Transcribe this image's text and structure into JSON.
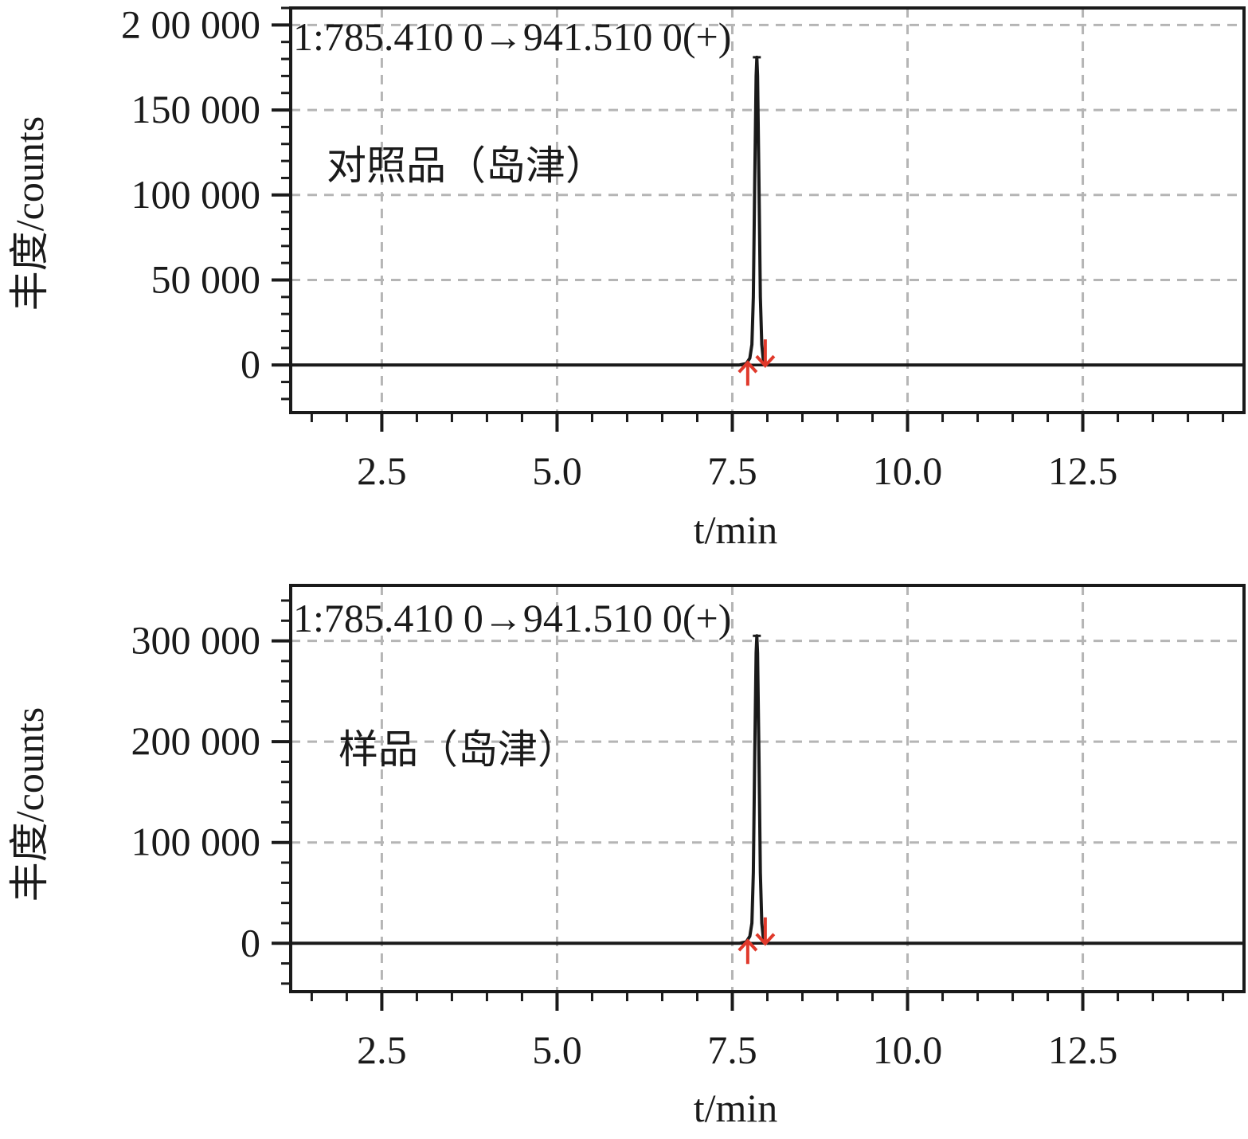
{
  "chart_data": [
    {
      "type": "line",
      "transition_label": "1:785.410 0→941.510 0(+)",
      "annotation": "对照品（岛津）",
      "xlabel": "t/min",
      "ylabel": "丰度/counts",
      "xlim": [
        1.2,
        14.8
      ],
      "ylim": [
        -28000,
        210000
      ],
      "x_ticks": [
        {
          "value": 2.5,
          "label": "2.5"
        },
        {
          "value": 5.0,
          "label": "5.0"
        },
        {
          "value": 7.5,
          "label": "7.5"
        },
        {
          "value": 10.0,
          "label": "10.0"
        },
        {
          "value": 12.5,
          "label": "12.5"
        }
      ],
      "y_ticks": [
        {
          "value": 0,
          "label": "0"
        },
        {
          "value": 50000,
          "label": "50 000"
        },
        {
          "value": 100000,
          "label": "100 000"
        },
        {
          "value": 150000,
          "label": "150 000"
        },
        {
          "value": 200000,
          "label": "2 00 000"
        }
      ],
      "grid": true,
      "peak": {
        "retention_time": 7.85,
        "height": 181000,
        "start": 7.72,
        "end": 7.98
      },
      "series": [
        {
          "x": [
            1.2,
            7.6,
            7.7,
            7.75,
            7.78,
            7.8,
            7.82,
            7.84,
            7.85,
            7.86,
            7.88,
            7.9,
            7.92,
            7.94,
            7.97,
            8.0,
            8.1,
            14.8
          ],
          "y": [
            0,
            0,
            800,
            4000,
            12000,
            40000,
            110000,
            170000,
            181000,
            170000,
            110000,
            40000,
            12000,
            4000,
            1000,
            0,
            0,
            0
          ]
        }
      ],
      "integration_markers": [
        {
          "x": 7.72,
          "y": 0,
          "direction": "up"
        },
        {
          "x": 7.97,
          "y": 1000,
          "direction": "down"
        }
      ]
    },
    {
      "type": "line",
      "transition_label": "1:785.410 0→941.510 0(+)",
      "annotation": "样品（岛津）",
      "xlabel": "t/min",
      "ylabel": "丰度/counts",
      "xlim": [
        1.2,
        14.8
      ],
      "ylim": [
        -48000,
        355000
      ],
      "x_ticks": [
        {
          "value": 2.5,
          "label": "2.5"
        },
        {
          "value": 5.0,
          "label": "5.0"
        },
        {
          "value": 7.5,
          "label": "7.5"
        },
        {
          "value": 10.0,
          "label": "10.0"
        },
        {
          "value": 12.5,
          "label": "12.5"
        }
      ],
      "y_ticks": [
        {
          "value": 0,
          "label": "0"
        },
        {
          "value": 100000,
          "label": "100 000"
        },
        {
          "value": 200000,
          "label": "200 000"
        },
        {
          "value": 300000,
          "label": "300 000"
        }
      ],
      "grid": true,
      "peak": {
        "retention_time": 7.85,
        "height": 305000,
        "start": 7.72,
        "end": 7.98
      },
      "series": [
        {
          "x": [
            1.2,
            7.6,
            7.7,
            7.75,
            7.78,
            7.8,
            7.82,
            7.84,
            7.85,
            7.86,
            7.88,
            7.9,
            7.92,
            7.94,
            7.97,
            8.0,
            8.1,
            14.8
          ],
          "y": [
            0,
            0,
            1500,
            7000,
            20000,
            70000,
            190000,
            288000,
            305000,
            288000,
            190000,
            70000,
            20000,
            7000,
            2000,
            0,
            0,
            0
          ]
        }
      ],
      "integration_markers": [
        {
          "x": 7.72,
          "y": 0,
          "direction": "up"
        },
        {
          "x": 7.97,
          "y": 2000,
          "direction": "down"
        }
      ]
    }
  ],
  "colors": {
    "trace": "#1a1a1a",
    "axis": "#1a1a1a",
    "grid": "#b5b5b5",
    "marker": "#e0392b"
  }
}
